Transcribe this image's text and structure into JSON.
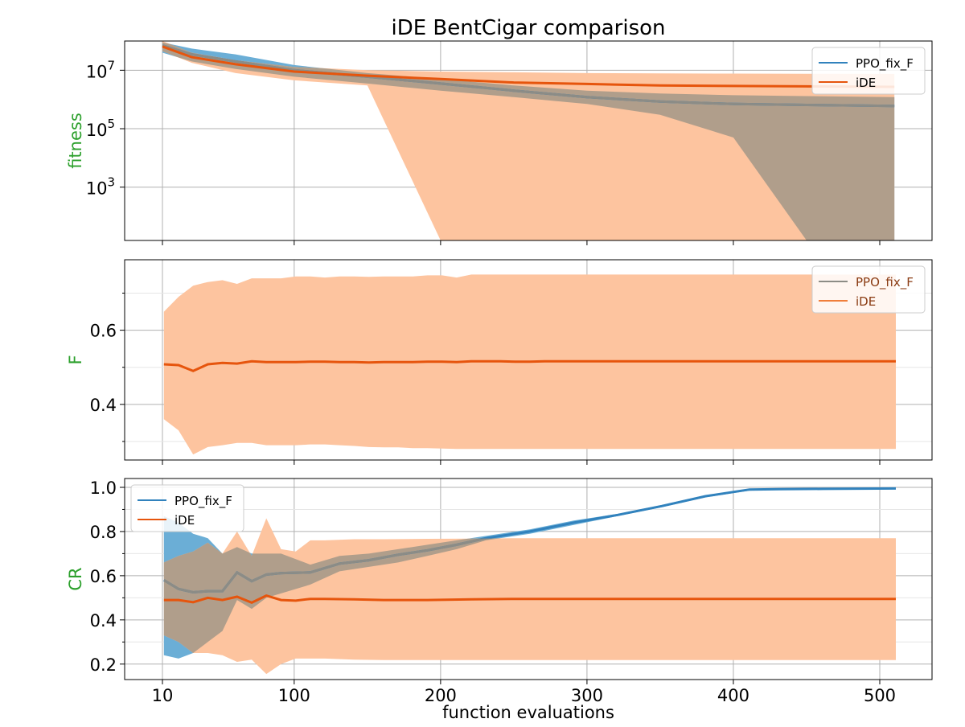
{
  "figure": {
    "title": "iDE BentCigar comparison",
    "xlabel": "function evaluations",
    "xticks": [
      "10",
      "100",
      "200",
      "300",
      "400",
      "500"
    ]
  },
  "colors": {
    "ppo_line": "#3182bd",
    "ppo_fill": "#6baed6",
    "ide_line": "#e6550d",
    "ide_fill": "#fdc49f",
    "overlap_fill": "#b09e8b",
    "overlap_line": "#8c8c86",
    "axis_label": "#2ca02c"
  },
  "chart_data": [
    {
      "type": "line",
      "panel": "fitness",
      "ylabel": "fitness",
      "yscale": "log",
      "ylim": [
        15,
        100000000
      ],
      "yticks": [
        {
          "base": "10",
          "exp": "3",
          "value": 1000
        },
        {
          "base": "10",
          "exp": "5",
          "value": 100000
        },
        {
          "base": "10",
          "exp": "7",
          "value": 10000000
        }
      ],
      "minor_grid": false,
      "legend": {
        "position": "top-right",
        "entries": [
          "PPO_fix_F",
          "iDE"
        ]
      },
      "series": [
        {
          "name": "PPO_fix_F",
          "x": [
            10,
            30,
            60,
            100,
            150,
            200,
            250,
            300,
            350,
            400,
            450,
            510
          ],
          "mean": [
            70000000,
            35000000,
            20000000,
            10000000,
            6000000,
            3500000,
            2000000,
            1200000,
            850000,
            700000,
            650000,
            600000
          ],
          "band_upper": [
            90000000,
            55000000,
            35000000,
            15000000,
            8000000,
            5000000,
            3000000,
            2000000,
            1600000,
            1400000,
            1300000,
            1200000
          ],
          "band_lower": [
            40000000,
            20000000,
            11000000,
            6000000,
            3500000,
            2000000,
            1200000,
            700000,
            300000,
            50000,
            15,
            15
          ]
        },
        {
          "name": "iDE",
          "x": [
            10,
            30,
            60,
            100,
            150,
            200,
            250,
            300,
            350,
            400,
            450,
            510
          ],
          "mean": [
            65000000,
            28000000,
            16000000,
            9000000,
            6500000,
            5000000,
            3800000,
            3400000,
            3000000,
            2900000,
            2800000,
            2700000
          ],
          "band_upper": [
            100000000,
            40000000,
            22000000,
            13000000,
            10000000,
            9000000,
            8500000,
            8000000,
            7800000,
            7700000,
            7600000,
            7500000
          ],
          "band_lower": [
            45000000,
            18000000,
            8000000,
            4500000,
            3000000,
            15,
            15,
            15,
            15,
            15,
            15,
            15
          ]
        }
      ]
    },
    {
      "type": "line",
      "panel": "F",
      "ylabel": "F",
      "yscale": "linear",
      "ylim": [
        0.25,
        0.79
      ],
      "yticks": [
        "0.4",
        "0.6"
      ],
      "legend": {
        "position": "top-right",
        "entries": [
          "PPO_fix_F",
          "iDE"
        ]
      },
      "series": [
        {
          "name": "iDE",
          "x": [
            11,
            21,
            31,
            41,
            51,
            61,
            71,
            81,
            91,
            101,
            111,
            121,
            131,
            141,
            151,
            161,
            171,
            181,
            191,
            201,
            211,
            221,
            231,
            241,
            251,
            261,
            271,
            281,
            291,
            301,
            311,
            321,
            331,
            341,
            351,
            361,
            371,
            381,
            391,
            401,
            411,
            421,
            431,
            441,
            451,
            461,
            471,
            481,
            491,
            501,
            511
          ],
          "mean": [
            0.508,
            0.506,
            0.49,
            0.508,
            0.512,
            0.51,
            0.516,
            0.514,
            0.514,
            0.514,
            0.515,
            0.515,
            0.514,
            0.514,
            0.513,
            0.514,
            0.514,
            0.514,
            0.515,
            0.515,
            0.514,
            0.516,
            0.516,
            0.516,
            0.515,
            0.515,
            0.516,
            0.516,
            0.516,
            0.516,
            0.516,
            0.516,
            0.516,
            0.516,
            0.516,
            0.516,
            0.516,
            0.516,
            0.516,
            0.516,
            0.516,
            0.516,
            0.516,
            0.516,
            0.516,
            0.516,
            0.516,
            0.516,
            0.516,
            0.516,
            0.516
          ],
          "band_upper": [
            0.65,
            0.69,
            0.72,
            0.73,
            0.735,
            0.725,
            0.74,
            0.74,
            0.74,
            0.745,
            0.745,
            0.742,
            0.745,
            0.745,
            0.744,
            0.745,
            0.745,
            0.745,
            0.748,
            0.748,
            0.742,
            0.75,
            0.75,
            0.75,
            0.75,
            0.75,
            0.75,
            0.75,
            0.75,
            0.75,
            0.75,
            0.75,
            0.75,
            0.75,
            0.75,
            0.75,
            0.75,
            0.75,
            0.75,
            0.75,
            0.75,
            0.75,
            0.75,
            0.75,
            0.75,
            0.75,
            0.75,
            0.75,
            0.75,
            0.75,
            0.75
          ],
          "band_lower": [
            0.36,
            0.33,
            0.265,
            0.285,
            0.29,
            0.296,
            0.296,
            0.29,
            0.29,
            0.29,
            0.292,
            0.292,
            0.29,
            0.288,
            0.285,
            0.284,
            0.284,
            0.282,
            0.282,
            0.281,
            0.28,
            0.28,
            0.28,
            0.28,
            0.28,
            0.28,
            0.28,
            0.28,
            0.28,
            0.28,
            0.28,
            0.28,
            0.28,
            0.28,
            0.28,
            0.28,
            0.28,
            0.28,
            0.28,
            0.28,
            0.28,
            0.28,
            0.28,
            0.28,
            0.28,
            0.28,
            0.28,
            0.28,
            0.28,
            0.28,
            0.28
          ]
        }
      ]
    },
    {
      "type": "line",
      "panel": "CR",
      "ylabel": "CR",
      "yscale": "linear",
      "ylim": [
        0.13,
        1.04
      ],
      "yticks": [
        "0.2",
        "0.4",
        "0.6",
        "0.8",
        "1.0"
      ],
      "legend": {
        "position": "top-left",
        "entries": [
          "PPO_fix_F",
          "iDE"
        ]
      },
      "series": [
        {
          "name": "PPO_fix_F",
          "x": [
            11,
            21,
            31,
            41,
            51,
            61,
            71,
            81,
            91,
            111,
            131,
            151,
            171,
            191,
            211,
            231,
            261,
            291,
            321,
            351,
            381,
            411,
            431,
            461,
            511
          ],
          "mean": [
            0.58,
            0.54,
            0.525,
            0.53,
            0.53,
            0.615,
            0.575,
            0.605,
            0.612,
            0.615,
            0.655,
            0.67,
            0.695,
            0.715,
            0.74,
            0.77,
            0.8,
            0.84,
            0.875,
            0.915,
            0.96,
            0.99,
            0.992,
            0.993,
            0.995
          ],
          "band_upper": [
            0.87,
            0.84,
            0.79,
            0.77,
            0.7,
            0.73,
            0.7,
            0.7,
            0.7,
            0.65,
            0.69,
            0.7,
            0.72,
            0.74,
            0.76,
            0.78,
            0.81,
            0.85,
            0.88,
            0.92,
            0.965,
            0.99,
            0.993,
            0.993,
            0.995
          ],
          "band_lower": [
            0.24,
            0.225,
            0.25,
            0.3,
            0.35,
            0.49,
            0.45,
            0.5,
            0.52,
            0.56,
            0.62,
            0.64,
            0.66,
            0.69,
            0.72,
            0.76,
            0.79,
            0.83,
            0.87,
            0.91,
            0.955,
            0.985,
            0.99,
            0.993,
            0.995
          ]
        },
        {
          "name": "iDE",
          "x": [
            11,
            21,
            31,
            41,
            51,
            61,
            71,
            81,
            91,
            101,
            111,
            121,
            141,
            161,
            191,
            221,
            251,
            301,
            351,
            401,
            451,
            511
          ],
          "mean": [
            0.49,
            0.49,
            0.48,
            0.5,
            0.49,
            0.505,
            0.478,
            0.51,
            0.49,
            0.487,
            0.495,
            0.495,
            0.493,
            0.49,
            0.49,
            0.493,
            0.495,
            0.495,
            0.495,
            0.495,
            0.495,
            0.495
          ],
          "band_upper": [
            0.66,
            0.69,
            0.71,
            0.75,
            0.7,
            0.8,
            0.69,
            0.86,
            0.72,
            0.71,
            0.76,
            0.76,
            0.765,
            0.765,
            0.767,
            0.768,
            0.77,
            0.77,
            0.77,
            0.77,
            0.77,
            0.77
          ],
          "band_lower": [
            0.33,
            0.3,
            0.25,
            0.25,
            0.24,
            0.21,
            0.22,
            0.155,
            0.2,
            0.225,
            0.225,
            0.225,
            0.22,
            0.218,
            0.218,
            0.218,
            0.218,
            0.218,
            0.218,
            0.218,
            0.218,
            0.218
          ]
        }
      ]
    }
  ]
}
